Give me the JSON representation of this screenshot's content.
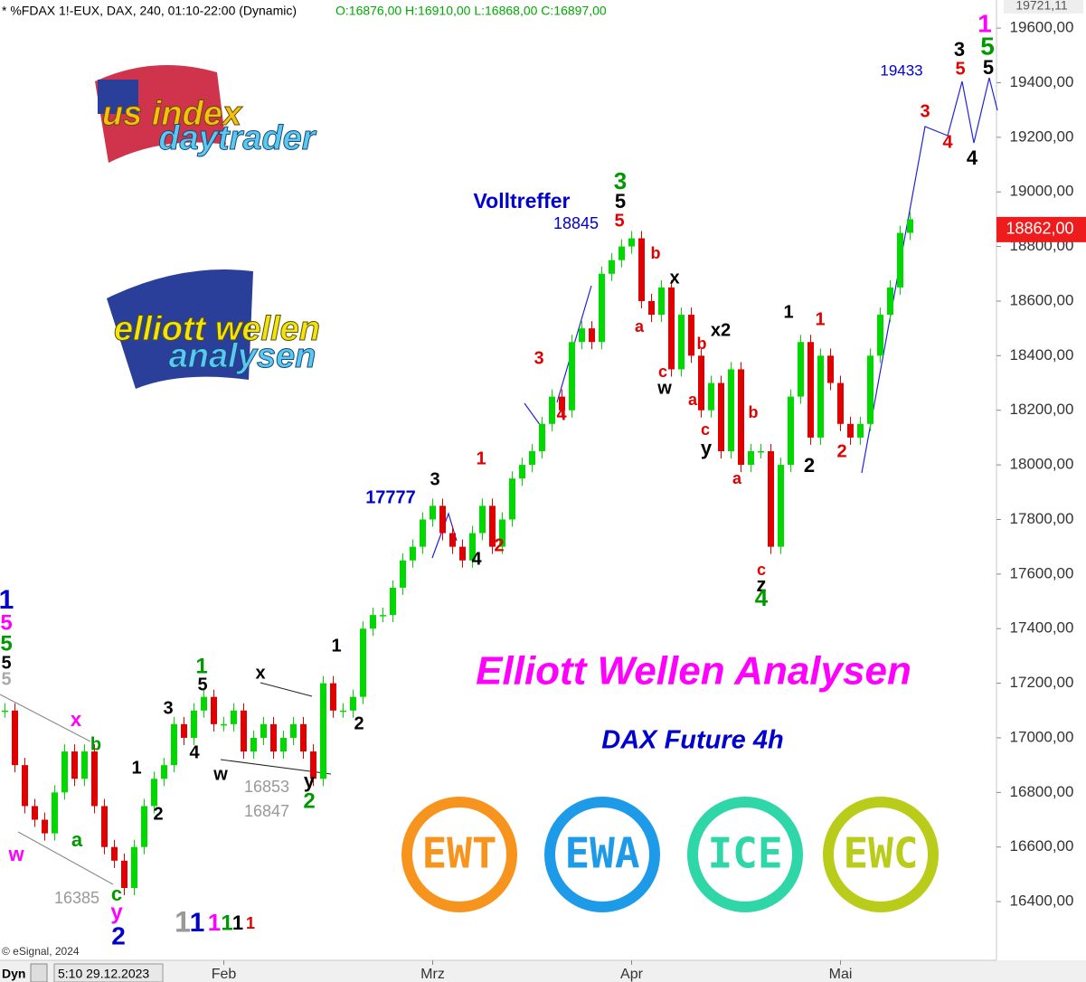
{
  "chart_data": {
    "type": "candlestick",
    "title": "* %FDAX 1!-EUX, DAX, 240, 01:10-22:00 (Dynamic)",
    "ohlc": "O:16876,00 H:16910,00 L:16868,00 C:16897,00",
    "categories": [
      null,
      null,
      null,
      null,
      null,
      null,
      null,
      null,
      null,
      null,
      null,
      null,
      null,
      null,
      null,
      null,
      null,
      null,
      null,
      null,
      null,
      null,
      "Feb",
      null,
      null,
      null,
      null,
      null,
      null,
      null,
      null,
      null,
      null,
      null,
      null,
      null,
      null,
      null,
      null,
      null,
      null,
      null,
      null,
      "Mrz",
      null,
      null,
      null,
      null,
      null,
      null,
      null,
      null,
      null,
      null,
      null,
      null,
      null,
      null,
      null,
      null,
      null,
      null,
      null,
      "Apr",
      null,
      null,
      null,
      null,
      null,
      null,
      null,
      null,
      null,
      null,
      null,
      null,
      null,
      null,
      null,
      null,
      null,
      null,
      null,
      null,
      "Mai",
      null,
      null,
      null,
      null,
      null,
      null,
      null
    ],
    "values": [
      17100,
      16900,
      16750,
      16700,
      16650,
      16800,
      16950,
      16850,
      16950,
      16750,
      16600,
      16550,
      16450,
      16600,
      16750,
      16850,
      16900,
      17050,
      17000,
      17100,
      17150,
      17050,
      17050,
      17100,
      16950,
      17000,
      17050,
      16950,
      17000,
      17050,
      16950,
      16850,
      17200,
      17100,
      17100,
      17150,
      17400,
      17450,
      17450,
      17550,
      17650,
      17700,
      17800,
      17850,
      17750,
      17700,
      17650,
      17750,
      17850,
      17700,
      17800,
      17950,
      18000,
      18050,
      18150,
      18250,
      18200,
      18450,
      18500,
      18450,
      18700,
      18750,
      18800,
      18830,
      18600,
      18550,
      18650,
      18350,
      18550,
      18400,
      18200,
      18300,
      18050,
      18350,
      18000,
      18050,
      18050,
      17700,
      18000,
      18250,
      18450,
      18100,
      18400,
      18300,
      18150,
      18100,
      18150,
      18400,
      18550,
      18650,
      18850,
      18900
    ],
    "up_color": "#00d800",
    "down_color": "#e00000",
    "ylim": [
      16185,
      19703
    ],
    "yticks": [
      {
        "value": 19600,
        "label": "19600,00"
      },
      {
        "value": 19400,
        "label": "19400,00"
      },
      {
        "value": 19200,
        "label": "19200,00"
      },
      {
        "value": 19000,
        "label": "19000,00"
      },
      {
        "value": 18800,
        "label": "18800,00"
      },
      {
        "value": 18600,
        "label": "18600,00"
      },
      {
        "value": 18400,
        "label": "18400,00"
      },
      {
        "value": 18200,
        "label": "18200,00"
      },
      {
        "value": 18000,
        "label": "18000,00"
      },
      {
        "value": 17800,
        "label": "17800,00"
      },
      {
        "value": 17600,
        "label": "17600,00"
      },
      {
        "value": 17400,
        "label": "17400,00"
      },
      {
        "value": 17200,
        "label": "17200,00"
      },
      {
        "value": 17000,
        "label": "17000,00"
      },
      {
        "value": 16800,
        "label": "16800,00"
      },
      {
        "value": 16600,
        "label": "16600,00"
      },
      {
        "value": 16400,
        "label": "16400,00"
      }
    ],
    "last_price": {
      "value": 18862,
      "label": "18862,00"
    },
    "high_price": {
      "value": 19721.11,
      "label": "19721,11"
    },
    "crosshair_date": "5:10 29.12.2023",
    "mode": "Dyn",
    "footer": "© eSignal, 2024",
    "headline": "Elliott Wellen Analysen",
    "subtitle": "DAX Future 4h",
    "logos": [
      "us index",
      "daytrader",
      "elliott wellen",
      "analysen"
    ],
    "badges": [
      {
        "text": "EWT",
        "color": "#f7941d"
      },
      {
        "text": "EWA",
        "color": "#1e9be8"
      },
      {
        "text": "ICE",
        "color": "#2fd6a8"
      },
      {
        "text": "EWC",
        "color": "#b9cc1a"
      }
    ],
    "annotations": [
      {
        "text": "1",
        "color": "#ff00ff"
      },
      {
        "text": "3",
        "color": "#000000"
      },
      {
        "text": "5",
        "color": "#009900"
      },
      {
        "text": "5",
        "color": "#e00000"
      },
      {
        "text": "5",
        "color": "#000000"
      },
      {
        "text": "19433",
        "color": "#0000cc"
      },
      {
        "text": "3",
        "color": "#e00000"
      },
      {
        "text": "4",
        "color": "#e00000"
      },
      {
        "text": "4",
        "color": "#000000"
      },
      {
        "text": "3",
        "color": "#009900"
      },
      {
        "text": "5",
        "color": "#000000"
      },
      {
        "text": "5",
        "color": "#e00000"
      },
      {
        "text": "Volltreffer",
        "color": "#0000cc"
      },
      {
        "text": "18845",
        "color": "#0000cc"
      },
      {
        "text": "b",
        "color": "#e00000"
      },
      {
        "text": "x",
        "color": "#000000"
      },
      {
        "text": "a",
        "color": "#e00000"
      },
      {
        "text": "x2",
        "color": "#000000"
      },
      {
        "text": "b",
        "color": "#e00000"
      },
      {
        "text": "c",
        "color": "#e00000"
      },
      {
        "text": "w",
        "color": "#000000"
      },
      {
        "text": "a",
        "color": "#e00000"
      },
      {
        "text": "c",
        "color": "#e00000"
      },
      {
        "text": "y",
        "color": "#000000"
      },
      {
        "text": "b",
        "color": "#e00000"
      },
      {
        "text": "a",
        "color": "#e00000"
      },
      {
        "text": "c",
        "color": "#e00000"
      },
      {
        "text": "z",
        "color": "#000000"
      },
      {
        "text": "4",
        "color": "#009900"
      },
      {
        "text": "1",
        "color": "#000000"
      },
      {
        "text": "1",
        "color": "#e00000"
      },
      {
        "text": "2",
        "color": "#000000"
      },
      {
        "text": "2",
        "color": "#e00000"
      },
      {
        "text": "3",
        "color": "#e00000"
      },
      {
        "text": "4",
        "color": "#e00000"
      },
      {
        "text": "1",
        "color": "#e00000"
      },
      {
        "text": "2",
        "color": "#e00000"
      },
      {
        "text": "3",
        "color": "#000000"
      },
      {
        "text": "17777",
        "color": "#0000cc"
      },
      {
        "text": "4",
        "color": "#000000"
      },
      {
        "text": "1",
        "color": "#000000"
      },
      {
        "text": "2",
        "color": "#000000"
      },
      {
        "text": "x",
        "color": "#000000"
      },
      {
        "text": "y",
        "color": "#000000"
      },
      {
        "text": "2",
        "color": "#009900"
      },
      {
        "text": "w",
        "color": "#000000"
      },
      {
        "text": "16853",
        "color": "#999999"
      },
      {
        "text": "16847",
        "color": "#999999"
      },
      {
        "text": "1",
        "color": "#009900"
      },
      {
        "text": "5",
        "color": "#000000"
      },
      {
        "text": "3",
        "color": "#000000"
      },
      {
        "text": "4",
        "color": "#000000"
      },
      {
        "text": "1",
        "color": "#000000"
      },
      {
        "text": "2",
        "color": "#000000"
      },
      {
        "text": "x",
        "color": "#ff00ff"
      },
      {
        "text": "b",
        "color": "#009900"
      },
      {
        "text": "a",
        "color": "#009900"
      },
      {
        "text": "w",
        "color": "#ff00ff"
      },
      {
        "text": "16385",
        "color": "#999999"
      },
      {
        "text": "c",
        "color": "#009900"
      },
      {
        "text": "y",
        "color": "#ff00ff"
      },
      {
        "text": "2",
        "color": "#0000cc"
      },
      {
        "text": "1",
        "color": "#0000cc"
      },
      {
        "text": "5",
        "color": "#ff00ff"
      },
      {
        "text": "5",
        "color": "#009900"
      },
      {
        "text": "5",
        "color": "#000000"
      },
      {
        "text": "5",
        "color": "#aaaaaa"
      },
      {
        "text": "1",
        "color": "#999999"
      },
      {
        "text": "1",
        "color": "#0000cc"
      },
      {
        "text": "1",
        "color": "#ff00ff"
      },
      {
        "text": "1",
        "color": "#009900"
      },
      {
        "text": "1",
        "color": "#000000"
      },
      {
        "text": "1",
        "color": "#e00000"
      }
    ]
  }
}
